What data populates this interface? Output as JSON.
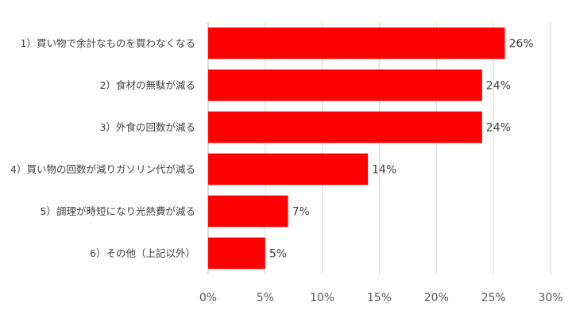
{
  "chart_data": {
    "type": "bar",
    "orientation": "horizontal",
    "categories": [
      "1）買い物で余計なものを買わなくなる",
      "2）食材の無駄が減る",
      "3）外食の回数が減る",
      "4）買い物の回数が減りガソリン代が減る",
      "5）調理が時短になり光熱費が減る",
      "6）その他（上記以外）"
    ],
    "values": [
      26,
      24,
      24,
      14,
      7,
      5
    ],
    "data_labels": [
      "26%",
      "24%",
      "24%",
      "14%",
      "7%",
      "5%"
    ],
    "x_ticks": [
      "0%",
      "5%",
      "10%",
      "15%",
      "20%",
      "25%",
      "30%"
    ],
    "xlim": [
      0,
      30
    ],
    "grid": true,
    "bar_color": "#ff0000",
    "title": "",
    "xlabel": "",
    "ylabel": ""
  }
}
